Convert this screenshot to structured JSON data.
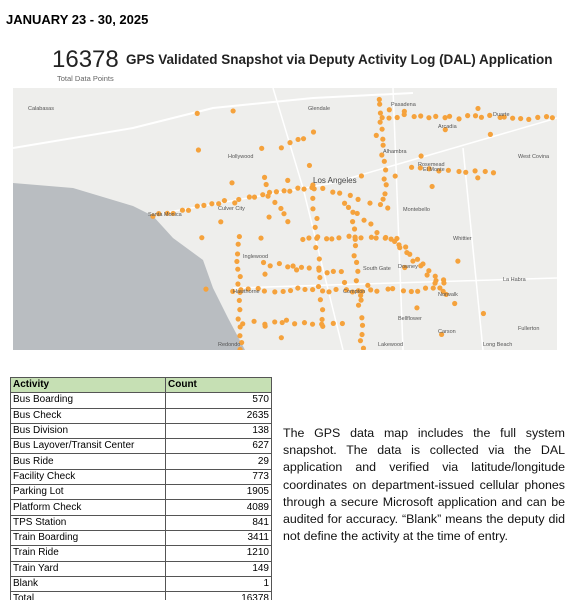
{
  "header": {
    "date_range": "JANUARY 23 - 30, 2025"
  },
  "panel": {
    "total": 16378,
    "title": "GPS Validated Snapshot via Deputy Activity Log (DAL) Application",
    "total_label": "Total Data Points"
  },
  "map": {
    "labels": [
      "Glendale",
      "Pasadena",
      "Arcadia",
      "Alhambra",
      "Rosemead",
      "El Monte",
      "Hollywood",
      "Los Angeles",
      "Santa Monica",
      "Culver City",
      "Inglewood",
      "Compton",
      "Downey",
      "Norwalk",
      "Whittier",
      "La Habra",
      "Fullerton",
      "Long Beach",
      "Lakewood",
      "Hawthorne",
      "Redondo",
      "Carson",
      "Bellflower",
      "Montebello",
      "South Gate",
      "Calabasas",
      "Duarte",
      "West Covina"
    ]
  },
  "table": {
    "header": [
      "Activity",
      "Count"
    ],
    "rows": [
      [
        "Bus Boarding",
        570
      ],
      [
        "Bus Check",
        2635
      ],
      [
        "Bus Division",
        138
      ],
      [
        "Bus Layover/Transit Center",
        627
      ],
      [
        "Bus Ride",
        29
      ],
      [
        "Facility Check",
        773
      ],
      [
        "Parking Lot",
        1905
      ],
      [
        "Platform Check",
        4089
      ],
      [
        "TPS Station",
        841
      ],
      [
        "Train Boarding",
        3411
      ],
      [
        "Train Ride",
        1210
      ],
      [
        "Train Yard",
        149
      ],
      [
        "Blank",
        1
      ],
      [
        "Total",
        16378
      ]
    ]
  },
  "note": "The GPS data map includes the full system snapshot. The data is collected via the DAL application and verified via latitude/longitude coordinates on department-issued cellular phones through a secure Microsoft application and can be audited for accuracy. “Blank” means the deputy did not define the activity at the time of entry."
}
